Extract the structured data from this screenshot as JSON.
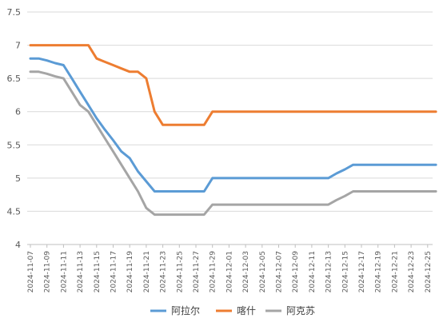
{
  "chart_data": {
    "type": "line",
    "title": "",
    "xlabel": "",
    "ylabel": "",
    "ylim": [
      4,
      7.5
    ],
    "yticks": [
      4,
      4.5,
      5,
      5.5,
      6,
      6.5,
      7,
      7.5
    ],
    "ytick_labels": [
      "4",
      "4.5",
      "5",
      "5.5",
      "6",
      "6.5",
      "7",
      "7.5"
    ],
    "grid": "horizontal",
    "legend_position": "bottom",
    "x": [
      "2024-11-07",
      "2024-11-08",
      "2024-11-09",
      "2024-11-10",
      "2024-11-11",
      "2024-11-12",
      "2024-11-13",
      "2024-11-14",
      "2024-11-15",
      "2024-11-16",
      "2024-11-17",
      "2024-11-18",
      "2024-11-19",
      "2024-11-20",
      "2024-11-21",
      "2024-11-22",
      "2024-11-23",
      "2024-11-24",
      "2024-11-25",
      "2024-11-26",
      "2024-11-27",
      "2024-11-28",
      "2024-11-29",
      "2024-11-30",
      "2024-12-01",
      "2024-12-02",
      "2024-12-03",
      "2024-12-04",
      "2024-12-05",
      "2024-12-06",
      "2024-12-07",
      "2024-12-08",
      "2024-12-09",
      "2024-12-10",
      "2024-12-11",
      "2024-12-12",
      "2024-12-13",
      "2024-12-14",
      "2024-12-15",
      "2024-12-16",
      "2024-12-17",
      "2024-12-18",
      "2024-12-19",
      "2024-12-20",
      "2024-12-21",
      "2024-12-22",
      "2024-12-23",
      "2024-12-24",
      "2024-12-25",
      "2024-12-26"
    ],
    "x_tick_labels": [
      "2024-11-07",
      "2024-11-09",
      "2024-11-11",
      "2024-11-13",
      "2024-11-15",
      "2024-11-17",
      "2024-11-19",
      "2024-11-21",
      "2024-11-23",
      "2024-11-25",
      "2024-11-27",
      "2024-11-29",
      "2024-12-01",
      "2024-12-03",
      "2024-12-05",
      "2024-12-07",
      "2024-12-09",
      "2024-12-11",
      "2024-12-13",
      "2024-12-15",
      "2024-12-17",
      "2024-12-19",
      "2024-12-21",
      "2024-12-23",
      "2024-12-25"
    ],
    "series": [
      {
        "name": "阿拉尔",
        "color": "#5b9bd5",
        "values": [
          6.8,
          6.8,
          6.77,
          6.73,
          6.7,
          6.5,
          6.3,
          6.1,
          5.9,
          5.73,
          5.57,
          5.4,
          5.3,
          5.1,
          4.95,
          4.8,
          4.8,
          4.8,
          4.8,
          4.8,
          4.8,
          4.8,
          5,
          5,
          5,
          5,
          5,
          5,
          5,
          5,
          5,
          5,
          5,
          5,
          5,
          5,
          5,
          5.07,
          5.13,
          5.2,
          5.2,
          5.2,
          5.2,
          5.2,
          5.2,
          5.2,
          5.2,
          5.2,
          5.2,
          5.2
        ]
      },
      {
        "name": "喀什",
        "color": "#ed7d31",
        "values": [
          7,
          7,
          7,
          7,
          7,
          7,
          7,
          7,
          6.8,
          6.75,
          6.7,
          6.65,
          6.6,
          6.6,
          6.5,
          6,
          5.8,
          5.8,
          5.8,
          5.8,
          5.8,
          5.8,
          6,
          6,
          6,
          6,
          6,
          6,
          6,
          6,
          6,
          6,
          6,
          6,
          6,
          6,
          6,
          6,
          6,
          6,
          6,
          6,
          6,
          6,
          6,
          6,
          6,
          6,
          6,
          6
        ]
      },
      {
        "name": "阿克苏",
        "color": "#a5a5a5",
        "values": [
          6.6,
          6.6,
          6.57,
          6.53,
          6.5,
          6.3,
          6.1,
          6,
          5.8,
          5.6,
          5.4,
          5.2,
          5,
          4.8,
          4.55,
          4.45,
          4.45,
          4.45,
          4.45,
          4.45,
          4.45,
          4.45,
          4.6,
          4.6,
          4.6,
          4.6,
          4.6,
          4.6,
          4.6,
          4.6,
          4.6,
          4.6,
          4.6,
          4.6,
          4.6,
          4.6,
          4.6,
          4.67,
          4.73,
          4.8,
          4.8,
          4.8,
          4.8,
          4.8,
          4.8,
          4.8,
          4.8,
          4.8,
          4.8,
          4.8
        ]
      }
    ]
  },
  "colors": {
    "grid": "#d9d9d9",
    "axis": "#bfbfbf",
    "text": "#595959"
  }
}
